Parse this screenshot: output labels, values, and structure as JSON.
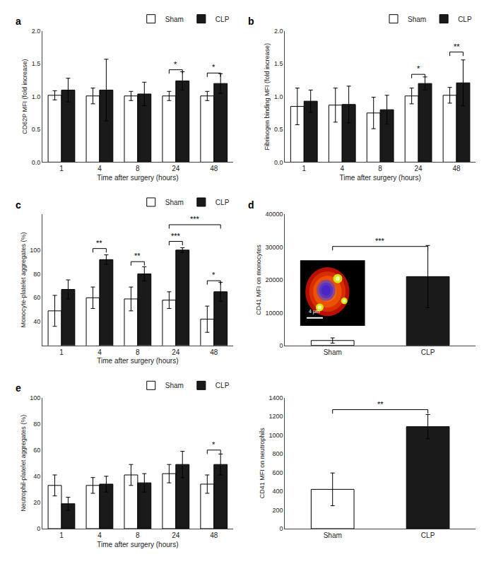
{
  "chart_data": [
    {
      "type": "bar",
      "title": "a",
      "xlabel": "Time after surgery (hours)",
      "ylabel": "CD62P MFI (fold increase)",
      "categories": [
        "1",
        "4",
        "8",
        "24",
        "48"
      ],
      "series": [
        {
          "name": "Sham",
          "color": "#ffffff",
          "values": [
            1.02,
            1.01,
            1.01,
            1.01,
            1.01
          ],
          "errors": [
            0.07,
            0.12,
            0.07,
            0.07,
            0.07
          ]
        },
        {
          "name": "CLP",
          "color": "#1a1a1a",
          "values": [
            1.1,
            1.1,
            1.04,
            1.24,
            1.2
          ],
          "errors": [
            0.18,
            0.47,
            0.18,
            0.14,
            0.15
          ]
        }
      ],
      "ylim": [
        0.0,
        2.0
      ],
      "yticks": [
        {
          "value": 0.0,
          "label": "0.0"
        },
        0.5,
        {
          "value": 1.0,
          "label": "1.0"
        },
        1.5,
        {
          "value": 2.0,
          "label": "2.0"
        }
      ],
      "grid": false,
      "legend": "upper right",
      "annotations": [
        {
          "text": "*",
          "y": 1.35,
          "from": {
            "category": "24",
            "series": "Sham"
          },
          "to": {
            "category": "24",
            "series": "CLP"
          }
        },
        {
          "text": "*",
          "y": 1.3,
          "from": {
            "category": "48",
            "series": "Sham"
          },
          "to": {
            "category": "48",
            "series": "CLP"
          }
        }
      ]
    },
    {
      "type": "bar",
      "title": "b",
      "xlabel": "Time after surgery (hours)",
      "ylabel": "Fibrinogen binding MFI (fold increase)",
      "categories": [
        "1",
        "4",
        "8",
        "24",
        "48"
      ],
      "series": [
        {
          "name": "Sham",
          "color": "#ffffff",
          "values": [
            0.85,
            0.87,
            0.75,
            1.01,
            1.02
          ],
          "errors": [
            0.28,
            0.26,
            0.24,
            0.12,
            0.12
          ]
        },
        {
          "name": "CLP",
          "color": "#1a1a1a",
          "values": [
            0.93,
            0.88,
            0.8,
            1.2,
            1.21
          ],
          "errors": [
            0.17,
            0.28,
            0.22,
            0.1,
            0.35
          ]
        }
      ],
      "ylim": [
        0.0,
        2.0
      ],
      "yticks": [
        {
          "value": 0.0,
          "label": "0.0"
        },
        0.5,
        {
          "value": 1.0,
          "label": "1.0"
        },
        1.5,
        {
          "value": 2.0,
          "label": "2.0"
        }
      ],
      "grid": false,
      "legend": "upper right",
      "annotations": [
        {
          "text": "*",
          "y": 1.28,
          "from": {
            "category": "24",
            "series": "Sham"
          },
          "to": {
            "category": "24",
            "series": "CLP"
          }
        },
        {
          "text": "**",
          "y": 1.62,
          "from": {
            "category": "48",
            "series": "Sham"
          },
          "to": {
            "category": "48",
            "series": "CLP"
          }
        }
      ]
    },
    {
      "type": "bar",
      "title": "c",
      "xlabel": "Time after surgery (hours)",
      "ylabel": "Monocyte-platelet aggregates (%)",
      "categories": [
        "1",
        "4",
        "8",
        "24",
        "48"
      ],
      "series": [
        {
          "name": "Sham",
          "color": "#ffffff",
          "values": [
            49,
            60,
            59,
            58,
            42
          ],
          "errors": [
            13,
            9,
            10,
            7,
            11
          ]
        },
        {
          "name": "CLP",
          "color": "#1a1a1a",
          "values": [
            67,
            92,
            80,
            100,
            65
          ],
          "errors": [
            8,
            4,
            6,
            2,
            8
          ]
        }
      ],
      "ylim": [
        20,
        130
      ],
      "yticks": [
        40,
        60,
        80,
        100
      ],
      "grid": false,
      "legend": "upper right",
      "annotations": [
        {
          "text": "**",
          "y": 98,
          "from": {
            "category": "4",
            "series": "Sham"
          },
          "to": {
            "category": "4",
            "series": "CLP"
          }
        },
        {
          "text": "**",
          "y": 87,
          "from": {
            "category": "8",
            "series": "Sham"
          },
          "to": {
            "category": "8",
            "series": "CLP"
          }
        },
        {
          "text": "***",
          "y": 104,
          "from": {
            "category": "24",
            "series": "Sham"
          },
          "to": {
            "category": "24",
            "series": "CLP"
          }
        },
        {
          "text": "*",
          "y": 71,
          "from": {
            "category": "48",
            "series": "Sham"
          },
          "to": {
            "category": "48",
            "series": "CLP"
          }
        },
        {
          "text": "***",
          "y": 118,
          "from": {
            "category": "24",
            "series": "Sham"
          },
          "to": {
            "category": "48",
            "series": "CLP"
          }
        }
      ]
    },
    {
      "type": "bar",
      "title": "d",
      "ylabel": "CD41 MFI on monocytes",
      "categories": [
        "Sham",
        "CLP"
      ],
      "values": [
        1500,
        21000
      ],
      "errors": [
        800,
        9500
      ],
      "colors": [
        "#ffffff",
        "#1a1a1a"
      ],
      "ylim": [
        0,
        40000
      ],
      "yticks": [
        0,
        10000,
        20000,
        30000,
        40000
      ],
      "grid": false,
      "annotations": [
        {
          "text": "***",
          "y": 29000,
          "from": {
            "category": "Sham"
          },
          "to": {
            "category": "CLP"
          }
        },
        {
          "text": "4 μm"
        }
      ]
    },
    {
      "type": "bar",
      "title": "e",
      "xlabel": "Time after surgery (hours)",
      "ylabel": "Neutrophil-platelet aggregates (%)",
      "categories": [
        "1",
        "4",
        "8",
        "24",
        "48"
      ],
      "series": [
        {
          "name": "Sham",
          "color": "#ffffff",
          "values": [
            33,
            33,
            41,
            42,
            34
          ],
          "errors": [
            8,
            6,
            8,
            7,
            7
          ]
        },
        {
          "name": "CLP",
          "color": "#1a1a1a",
          "values": [
            19,
            34,
            35,
            49,
            49
          ],
          "errors": [
            5,
            6,
            7,
            10,
            8
          ]
        }
      ],
      "ylim": [
        0,
        100
      ],
      "yticks": [
        0,
        20,
        40,
        60,
        80,
        100
      ],
      "grid": false,
      "legend": "upper right",
      "annotations": [
        {
          "text": "*",
          "y": 57,
          "from": {
            "category": "48",
            "series": "Sham"
          },
          "to": {
            "category": "48",
            "series": "CLP"
          }
        }
      ]
    },
    {
      "type": "bar",
      "ylabel": "CD41 MFI on neutrophils",
      "categories": [
        "Sham",
        "CLP"
      ],
      "values": [
        420,
        1090
      ],
      "errors": [
        175,
        130
      ],
      "colors": [
        "#ffffff",
        "#1a1a1a"
      ],
      "ylim": [
        0,
        1400
      ],
      "yticks": [
        0,
        200,
        400,
        600,
        800,
        1000,
        1200,
        1400
      ],
      "grid": false,
      "annotations": [
        {
          "text": "**",
          "y": 1230,
          "from": {
            "category": "Sham"
          },
          "to": {
            "category": "CLP"
          }
        }
      ]
    }
  ]
}
